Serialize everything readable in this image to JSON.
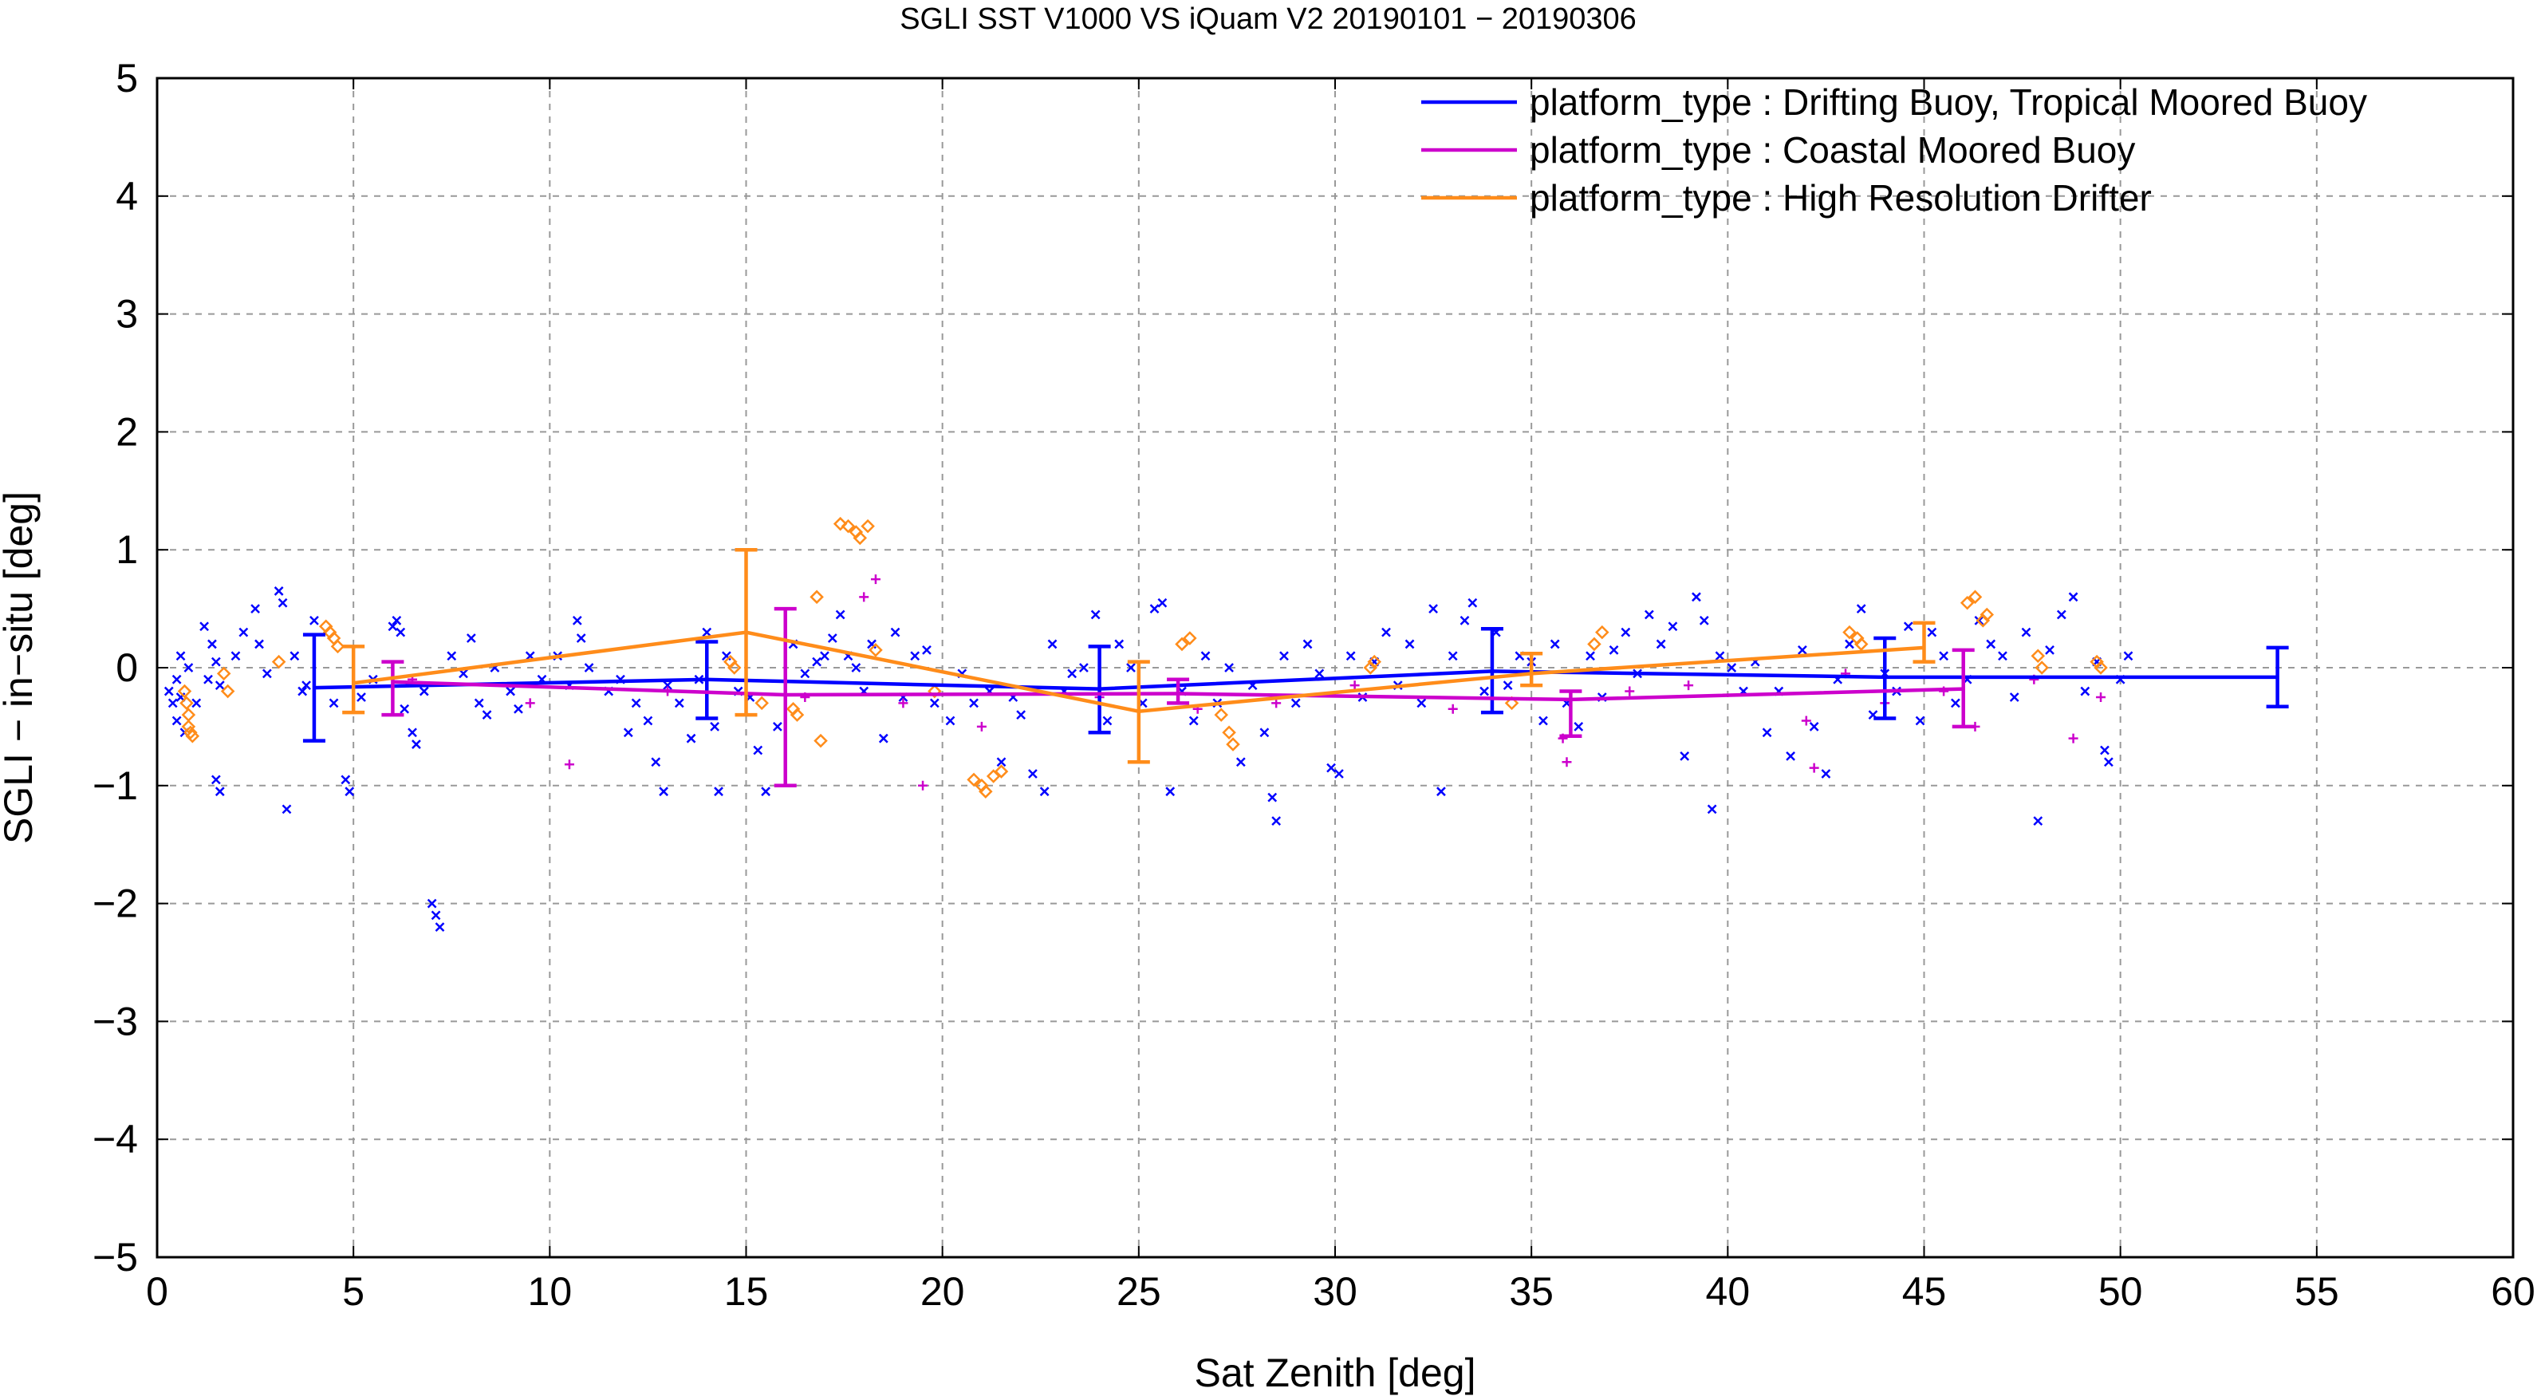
{
  "chart_data": {
    "type": "scatter",
    "title": "SGLI SST V1000 VS iQuam V2 20190101 − 20190306",
    "xlabel": "Sat Zenith [deg]",
    "ylabel": "SGLI − in−situ [deg]",
    "xlim": [
      0,
      60
    ],
    "ylim": [
      -5,
      5
    ],
    "x_ticks": [
      0,
      5,
      10,
      15,
      20,
      25,
      30,
      35,
      40,
      45,
      50,
      55,
      60
    ],
    "y_ticks": [
      -5,
      -4,
      -3,
      -2,
      -1,
      0,
      1,
      2,
      3,
      4,
      5
    ],
    "x_tick_labels": [
      "0",
      "5",
      "10",
      "15",
      "20",
      "25",
      "30",
      "35",
      "40",
      "45",
      "50",
      "55",
      "60"
    ],
    "y_tick_labels": [
      "−5",
      "−4",
      "−3",
      "−2",
      "−1",
      "0",
      "1",
      "2",
      "3",
      "4",
      "5"
    ],
    "grid": true,
    "legend_position": "top-right",
    "series": [
      {
        "name": "platform_type : Drifting Buoy, Tropical Moored Buoy",
        "color": "#0000ff",
        "marker": "x",
        "mean_line": {
          "x": [
            4,
            14,
            24,
            34,
            44,
            54
          ],
          "y": [
            -0.17,
            -0.1,
            -0.18,
            -0.03,
            -0.08,
            -0.08
          ],
          "err_low": [
            -0.62,
            -0.43,
            -0.55,
            -0.38,
            -0.43,
            -0.33
          ],
          "err_high": [
            0.28,
            0.22,
            0.18,
            0.33,
            0.25,
            0.17
          ]
        },
        "points": [
          [
            0.4,
            -0.3
          ],
          [
            0.5,
            -0.1
          ],
          [
            0.5,
            -0.45
          ],
          [
            0.6,
            0.1
          ],
          [
            0.6,
            -0.25
          ],
          [
            0.7,
            -0.55
          ],
          [
            0.8,
            0.0
          ],
          [
            0.3,
            -0.2
          ],
          [
            1.0,
            -0.3
          ],
          [
            1.2,
            0.35
          ],
          [
            1.3,
            -0.1
          ],
          [
            1.4,
            0.2
          ],
          [
            1.5,
            0.05
          ],
          [
            1.6,
            -0.15
          ],
          [
            1.5,
            -0.95
          ],
          [
            1.6,
            -1.05
          ],
          [
            2.0,
            0.1
          ],
          [
            2.2,
            0.3
          ],
          [
            2.5,
            0.5
          ],
          [
            2.6,
            0.2
          ],
          [
            2.8,
            -0.05
          ],
          [
            3.1,
            0.65
          ],
          [
            3.2,
            0.55
          ],
          [
            3.3,
            -1.2
          ],
          [
            3.5,
            0.1
          ],
          [
            3.7,
            -0.2
          ],
          [
            3.8,
            -0.15
          ],
          [
            4.0,
            0.4
          ],
          [
            4.5,
            -0.3
          ],
          [
            4.8,
            -0.95
          ],
          [
            4.9,
            -1.05
          ],
          [
            5.2,
            -0.25
          ],
          [
            5.5,
            -0.1
          ],
          [
            6.0,
            0.35
          ],
          [
            6.1,
            0.4
          ],
          [
            6.2,
            0.3
          ],
          [
            6.3,
            -0.35
          ],
          [
            6.5,
            -0.55
          ],
          [
            6.6,
            -0.65
          ],
          [
            6.8,
            -0.2
          ],
          [
            7.0,
            -2.0
          ],
          [
            7.1,
            -2.1
          ],
          [
            7.2,
            -2.2
          ],
          [
            7.5,
            0.1
          ],
          [
            7.8,
            -0.05
          ],
          [
            8.0,
            0.25
          ],
          [
            8.2,
            -0.3
          ],
          [
            8.4,
            -0.4
          ],
          [
            8.6,
            0.0
          ],
          [
            9.0,
            -0.2
          ],
          [
            9.2,
            -0.35
          ],
          [
            9.5,
            0.1
          ],
          [
            9.8,
            -0.1
          ],
          [
            10.2,
            0.1
          ],
          [
            10.5,
            -0.15
          ],
          [
            10.7,
            0.4
          ],
          [
            10.8,
            0.25
          ],
          [
            11.0,
            0.0
          ],
          [
            11.5,
            -0.2
          ],
          [
            11.8,
            -0.1
          ],
          [
            12.0,
            -0.55
          ],
          [
            12.2,
            -0.3
          ],
          [
            12.5,
            -0.45
          ],
          [
            12.7,
            -0.8
          ],
          [
            12.9,
            -1.05
          ],
          [
            13.0,
            -0.15
          ],
          [
            13.3,
            -0.3
          ],
          [
            13.6,
            -0.6
          ],
          [
            13.8,
            -0.1
          ],
          [
            14.0,
            0.3
          ],
          [
            14.2,
            -0.5
          ],
          [
            14.3,
            -1.05
          ],
          [
            14.5,
            0.1
          ],
          [
            14.8,
            -0.2
          ],
          [
            15.1,
            -0.25
          ],
          [
            15.3,
            -0.7
          ],
          [
            15.5,
            -1.05
          ],
          [
            15.8,
            -0.5
          ],
          [
            16.2,
            0.2
          ],
          [
            16.5,
            -0.05
          ],
          [
            16.8,
            0.05
          ],
          [
            17.0,
            0.1
          ],
          [
            17.2,
            0.25
          ],
          [
            17.4,
            0.45
          ],
          [
            17.6,
            0.1
          ],
          [
            17.8,
            0.0
          ],
          [
            18.0,
            -0.2
          ],
          [
            18.2,
            0.2
          ],
          [
            18.5,
            -0.6
          ],
          [
            18.8,
            0.3
          ],
          [
            19.0,
            -0.25
          ],
          [
            19.3,
            0.1
          ],
          [
            19.6,
            0.15
          ],
          [
            19.8,
            -0.3
          ],
          [
            20.2,
            -0.45
          ],
          [
            20.5,
            -0.05
          ],
          [
            20.8,
            -0.3
          ],
          [
            21.2,
            -0.2
          ],
          [
            21.5,
            -0.8
          ],
          [
            21.8,
            -0.25
          ],
          [
            22.0,
            -0.4
          ],
          [
            22.3,
            -0.9
          ],
          [
            22.6,
            -1.05
          ],
          [
            22.8,
            0.2
          ],
          [
            23.1,
            -0.2
          ],
          [
            23.3,
            -0.05
          ],
          [
            23.6,
            0.0
          ],
          [
            23.9,
            0.45
          ],
          [
            24.2,
            -0.45
          ],
          [
            24.5,
            0.2
          ],
          [
            24.8,
            0.0
          ],
          [
            25.1,
            -0.3
          ],
          [
            25.4,
            0.5
          ],
          [
            25.6,
            0.55
          ],
          [
            25.8,
            -1.05
          ],
          [
            26.1,
            -0.2
          ],
          [
            26.4,
            -0.45
          ],
          [
            26.7,
            0.1
          ],
          [
            27.0,
            -0.3
          ],
          [
            27.3,
            0.0
          ],
          [
            27.6,
            -0.8
          ],
          [
            27.9,
            -0.15
          ],
          [
            28.2,
            -0.55
          ],
          [
            28.4,
            -1.1
          ],
          [
            28.5,
            -1.3
          ],
          [
            28.7,
            0.1
          ],
          [
            29.0,
            -0.3
          ],
          [
            29.3,
            0.2
          ],
          [
            29.6,
            -0.05
          ],
          [
            29.9,
            -0.85
          ],
          [
            30.1,
            -0.9
          ],
          [
            30.4,
            0.1
          ],
          [
            30.7,
            -0.25
          ],
          [
            31.0,
            0.05
          ],
          [
            31.3,
            0.3
          ],
          [
            31.6,
            -0.15
          ],
          [
            31.9,
            0.2
          ],
          [
            32.2,
            -0.3
          ],
          [
            32.5,
            0.5
          ],
          [
            32.7,
            -1.05
          ],
          [
            33.0,
            0.1
          ],
          [
            33.3,
            0.4
          ],
          [
            33.5,
            0.55
          ],
          [
            33.8,
            -0.2
          ],
          [
            34.1,
            0.3
          ],
          [
            34.4,
            -0.15
          ],
          [
            34.7,
            0.1
          ],
          [
            35.0,
            0.05
          ],
          [
            35.3,
            -0.45
          ],
          [
            35.6,
            0.2
          ],
          [
            35.9,
            -0.3
          ],
          [
            36.2,
            -0.5
          ],
          [
            36.5,
            0.1
          ],
          [
            36.8,
            -0.25
          ],
          [
            37.1,
            0.15
          ],
          [
            37.4,
            0.3
          ],
          [
            37.7,
            -0.05
          ],
          [
            38.0,
            0.45
          ],
          [
            38.3,
            0.2
          ],
          [
            38.6,
            0.35
          ],
          [
            38.9,
            -0.75
          ],
          [
            39.2,
            0.6
          ],
          [
            39.4,
            0.4
          ],
          [
            39.6,
            -1.2
          ],
          [
            39.8,
            0.1
          ],
          [
            40.1,
            0.0
          ],
          [
            40.4,
            -0.2
          ],
          [
            40.7,
            0.05
          ],
          [
            41.0,
            -0.55
          ],
          [
            41.3,
            -0.2
          ],
          [
            41.6,
            -0.75
          ],
          [
            41.9,
            0.15
          ],
          [
            42.2,
            -0.5
          ],
          [
            42.5,
            -0.9
          ],
          [
            42.8,
            -0.1
          ],
          [
            43.1,
            0.2
          ],
          [
            43.4,
            0.5
          ],
          [
            43.7,
            -0.4
          ],
          [
            44.0,
            -0.05
          ],
          [
            44.3,
            -0.2
          ],
          [
            44.6,
            0.35
          ],
          [
            44.9,
            -0.45
          ],
          [
            45.2,
            0.3
          ],
          [
            45.5,
            0.1
          ],
          [
            45.8,
            -0.3
          ],
          [
            46.1,
            -0.1
          ],
          [
            46.4,
            0.4
          ],
          [
            46.7,
            0.2
          ],
          [
            47.0,
            0.1
          ],
          [
            47.3,
            -0.25
          ],
          [
            47.6,
            0.3
          ],
          [
            47.9,
            -1.3
          ],
          [
            48.2,
            0.15
          ],
          [
            48.5,
            0.45
          ],
          [
            48.8,
            0.6
          ],
          [
            49.1,
            -0.2
          ],
          [
            49.4,
            0.05
          ],
          [
            49.6,
            -0.7
          ],
          [
            49.7,
            -0.8
          ],
          [
            50.0,
            -0.1
          ],
          [
            50.2,
            0.1
          ]
        ]
      },
      {
        "name": "platform_type : Coastal Moored Buoy",
        "color": "#cc00cc",
        "marker": "+",
        "mean_line": {
          "x": [
            6,
            16,
            26,
            36,
            46
          ],
          "y": [
            -0.12,
            -0.23,
            -0.22,
            -0.27,
            -0.18
          ],
          "err_low": [
            -0.4,
            -1.0,
            -0.3,
            -0.58,
            -0.5
          ],
          "err_high": [
            0.05,
            0.5,
            -0.1,
            -0.2,
            0.15
          ]
        },
        "points": [
          [
            6.5,
            -0.1
          ],
          [
            9.5,
            -0.3
          ],
          [
            10.5,
            -0.82
          ],
          [
            13.0,
            -0.2
          ],
          [
            16.5,
            -0.25
          ],
          [
            18.0,
            0.6
          ],
          [
            18.3,
            0.75
          ],
          [
            19.0,
            -0.3
          ],
          [
            19.5,
            -1.0
          ],
          [
            21.0,
            -0.5
          ],
          [
            24.0,
            -0.25
          ],
          [
            26.5,
            -0.35
          ],
          [
            28.5,
            -0.3
          ],
          [
            30.5,
            -0.15
          ],
          [
            33.0,
            -0.35
          ],
          [
            35.8,
            -0.6
          ],
          [
            35.9,
            -0.8
          ],
          [
            37.5,
            -0.2
          ],
          [
            39.0,
            -0.15
          ],
          [
            42.0,
            -0.45
          ],
          [
            42.2,
            -0.85
          ],
          [
            43.0,
            -0.05
          ],
          [
            44.0,
            -0.3
          ],
          [
            45.5,
            -0.2
          ],
          [
            46.3,
            -0.5
          ],
          [
            47.8,
            -0.1
          ],
          [
            48.8,
            -0.6
          ],
          [
            49.5,
            -0.25
          ]
        ]
      },
      {
        "name": "platform_type : High Resolution Drifter",
        "color": "#ff8c1a",
        "marker": "diamond",
        "mean_line": {
          "x": [
            5,
            15,
            25,
            35,
            45
          ],
          "y": [
            -0.13,
            0.3,
            -0.37,
            -0.05,
            0.17
          ],
          "err_low": [
            -0.38,
            -0.4,
            -0.8,
            -0.15,
            0.05
          ],
          "err_high": [
            0.18,
            1.0,
            0.05,
            0.12,
            0.38
          ]
        },
        "points": [
          [
            0.7,
            -0.2
          ],
          [
            0.75,
            -0.3
          ],
          [
            0.8,
            -0.4
          ],
          [
            0.8,
            -0.5
          ],
          [
            0.85,
            -0.55
          ],
          [
            0.9,
            -0.58
          ],
          [
            1.7,
            -0.05
          ],
          [
            1.8,
            -0.2
          ],
          [
            3.1,
            0.05
          ],
          [
            4.3,
            0.35
          ],
          [
            4.4,
            0.3
          ],
          [
            4.5,
            0.25
          ],
          [
            4.6,
            0.18
          ],
          [
            14.6,
            0.05
          ],
          [
            14.7,
            0.0
          ],
          [
            15.4,
            -0.3
          ],
          [
            16.2,
            -0.35
          ],
          [
            16.3,
            -0.4
          ],
          [
            16.8,
            0.6
          ],
          [
            16.9,
            -0.62
          ],
          [
            17.4,
            1.22
          ],
          [
            17.6,
            1.2
          ],
          [
            17.8,
            1.15
          ],
          [
            17.9,
            1.1
          ],
          [
            18.1,
            1.2
          ],
          [
            18.3,
            0.15
          ],
          [
            19.8,
            -0.2
          ],
          [
            20.8,
            -0.95
          ],
          [
            21.0,
            -1.0
          ],
          [
            21.1,
            -1.05
          ],
          [
            21.3,
            -0.92
          ],
          [
            21.5,
            -0.88
          ],
          [
            26.1,
            0.2
          ],
          [
            26.3,
            0.25
          ],
          [
            27.1,
            -0.4
          ],
          [
            27.3,
            -0.55
          ],
          [
            27.4,
            -0.65
          ],
          [
            30.9,
            0.0
          ],
          [
            31.0,
            0.05
          ],
          [
            34.5,
            -0.3
          ],
          [
            36.6,
            0.2
          ],
          [
            36.8,
            0.3
          ],
          [
            43.1,
            0.3
          ],
          [
            43.3,
            0.25
          ],
          [
            43.4,
            0.2
          ],
          [
            46.1,
            0.55
          ],
          [
            46.3,
            0.6
          ],
          [
            46.5,
            0.4
          ],
          [
            46.6,
            0.45
          ],
          [
            47.9,
            0.1
          ],
          [
            48.0,
            0.0
          ],
          [
            49.4,
            0.05
          ],
          [
            49.5,
            0.0
          ]
        ]
      }
    ]
  }
}
